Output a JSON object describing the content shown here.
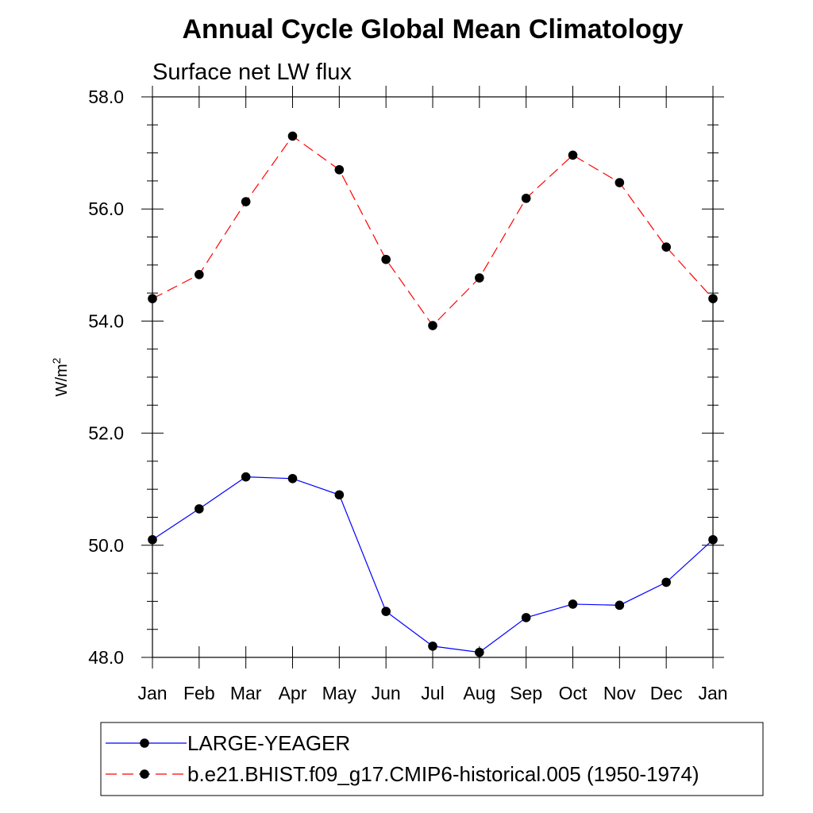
{
  "chart_data": {
    "type": "line",
    "title": "Annual Cycle Global Mean Climatology",
    "subtitle": "Surface net LW flux",
    "xlabel": "",
    "ylabel_base": "W/m",
    "ylabel_superscript": "2",
    "categories": [
      "Jan",
      "Feb",
      "Mar",
      "Apr",
      "May",
      "Jun",
      "Jul",
      "Aug",
      "Sep",
      "Oct",
      "Nov",
      "Dec",
      "Jan"
    ],
    "ylim": [
      48.0,
      58.0
    ],
    "yticks": [
      48.0,
      50.0,
      52.0,
      54.0,
      56.0,
      58.0
    ],
    "ytick_labels": [
      "48.0",
      "50.0",
      "52.0",
      "54.0",
      "56.0",
      "58.0"
    ],
    "y_minor_step": 0.5,
    "grid": false,
    "legend_position": "bottom",
    "series": [
      {
        "name": "LARGE-YEAGER",
        "color": "#0000ff",
        "dash": "solid",
        "marker": "filled-circle",
        "values": [
          50.1,
          50.65,
          51.22,
          51.19,
          50.9,
          48.82,
          48.2,
          48.09,
          48.71,
          48.95,
          48.93,
          49.34,
          50.1
        ]
      },
      {
        "name": "b.e21.BHIST.f09_g17.CMIP6-historical.005 (1950-1974)",
        "color": "#ff0000",
        "dash": "dashed",
        "marker": "filled-circle",
        "values": [
          54.4,
          54.83,
          56.13,
          57.3,
          56.7,
          55.1,
          53.92,
          54.77,
          56.19,
          56.96,
          56.47,
          55.32,
          54.4
        ]
      }
    ]
  }
}
